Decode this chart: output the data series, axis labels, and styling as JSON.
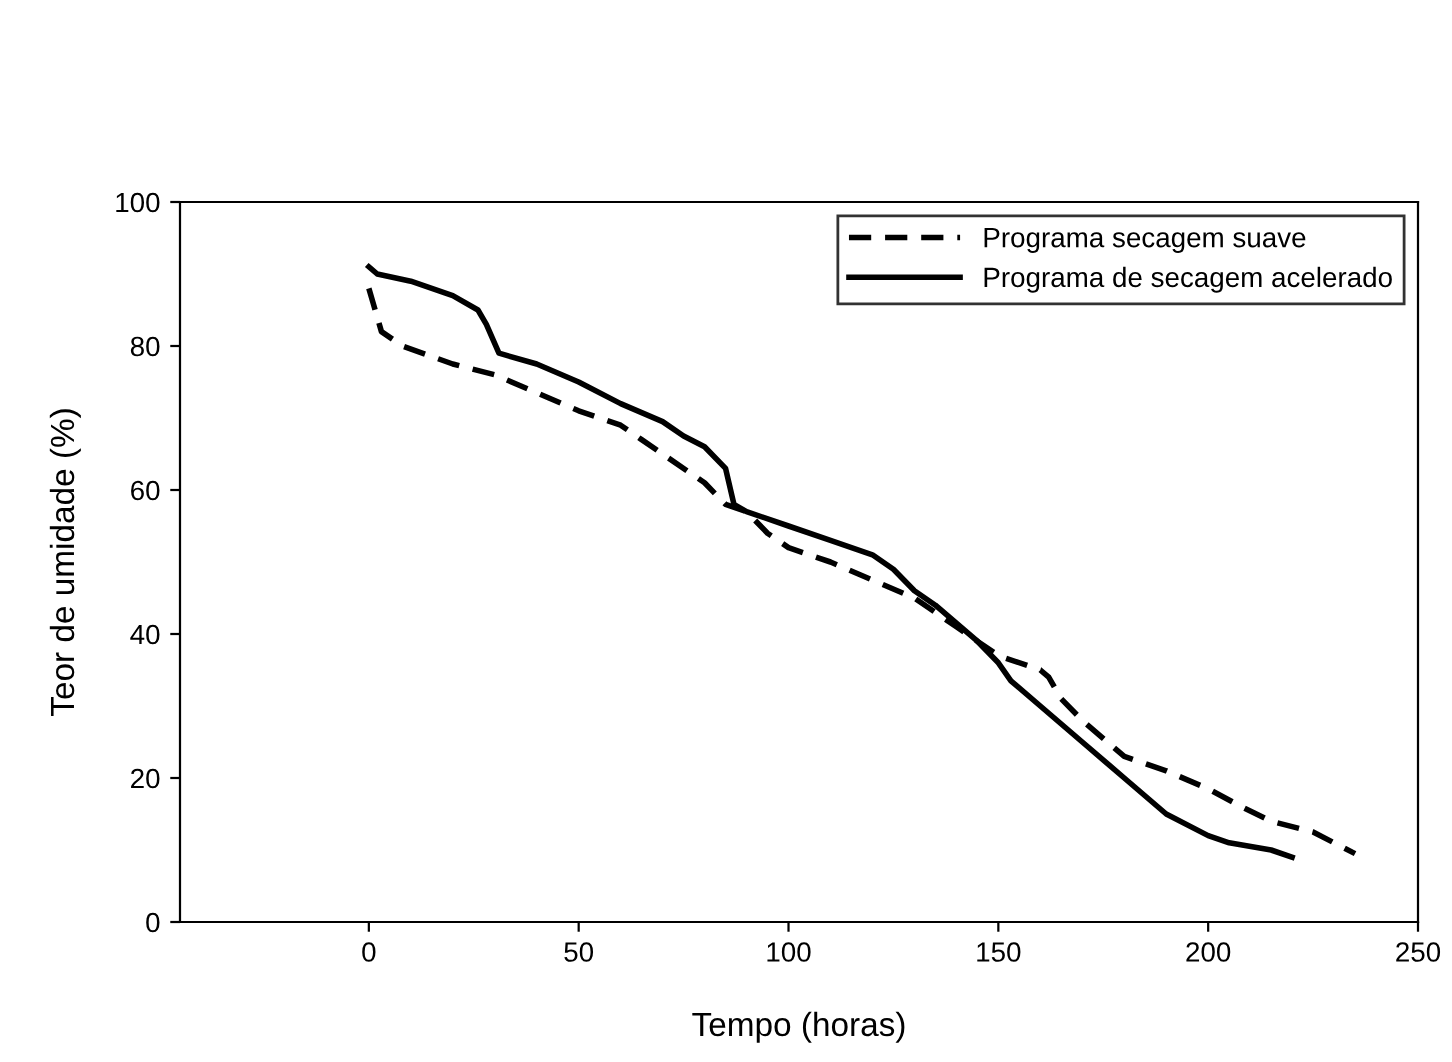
{
  "chart_data": {
    "type": "line",
    "xlabel": "Tempo (horas)",
    "ylabel": "Teor de umidade (%)",
    "xlim": [
      -45,
      250
    ],
    "xticks": [
      0,
      50,
      100,
      150,
      200,
      250
    ],
    "ylim": [
      0,
      100
    ],
    "yticks": [
      0,
      20,
      40,
      60,
      80,
      100
    ],
    "grid": false,
    "legend": "top right",
    "marker": "none",
    "series": [
      {
        "name": "Programa secagem suave",
        "color": "#000000",
        "line_style": "dashed",
        "x": [
          0,
          1,
          3,
          8,
          20,
          30,
          40,
          50,
          60,
          65,
          70,
          80,
          85,
          90,
          95,
          100,
          110,
          120,
          130,
          135,
          140,
          145,
          150,
          160,
          162,
          165,
          170,
          180,
          190,
          200,
          208,
          215,
          225,
          235
        ],
        "values": [
          88,
          86,
          82,
          80,
          77.5,
          76,
          73.5,
          71,
          69,
          67,
          65,
          61,
          58,
          57,
          54,
          52,
          50,
          47.5,
          45,
          43,
          41,
          39,
          37,
          35,
          34,
          31,
          28,
          23,
          21,
          18.5,
          16,
          14,
          12.5,
          9.5
        ]
      },
      {
        "name": "Programa de secagem acelerado",
        "color": "#000000",
        "line_style": "solid",
        "x": [
          0,
          2,
          10,
          20,
          26,
          28,
          31,
          40,
          50,
          60,
          70,
          75,
          80,
          85,
          87,
          90,
          100,
          110,
          120,
          125,
          130,
          135,
          140,
          145,
          150,
          153,
          160,
          170,
          180,
          190,
          200,
          205,
          215,
          220
        ],
        "values": [
          91,
          90,
          89,
          87,
          85,
          83,
          79,
          77.5,
          75,
          72,
          69.5,
          67.5,
          66,
          63,
          58,
          57,
          55,
          53,
          51,
          49,
          46,
          44,
          41.5,
          39,
          36,
          33.5,
          30,
          25,
          20,
          15,
          12,
          11,
          10,
          9
        ]
      }
    ]
  }
}
